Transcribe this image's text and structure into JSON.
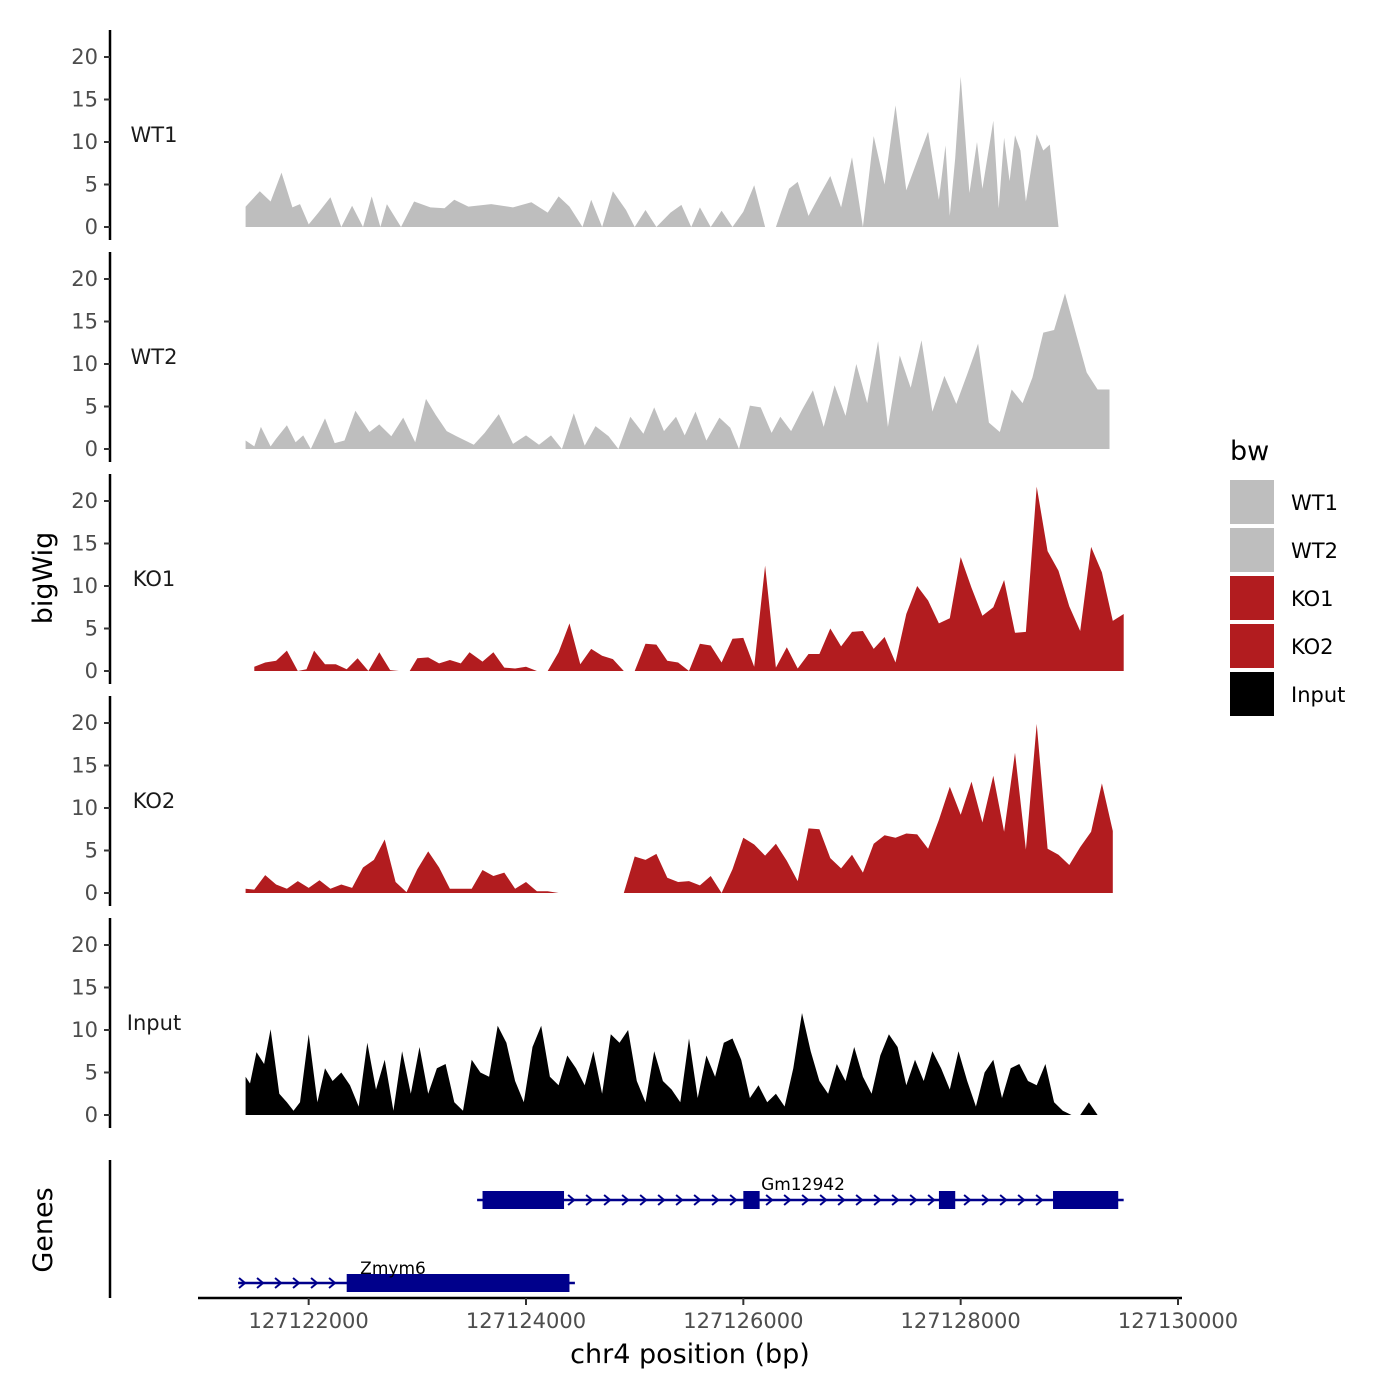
{
  "chart_data": {
    "type": "area",
    "title": "",
    "ylabel": "bigWig",
    "xlabel": "chr4 position (bp)",
    "xlim": [
      127121000,
      127130000
    ],
    "ylim": [
      0,
      22
    ],
    "yticks": [
      0,
      5,
      10,
      15,
      20
    ],
    "xticks": [
      127122000,
      127124000,
      127126000,
      127128000,
      127130000
    ],
    "legend": {
      "title": "bw",
      "position": "right",
      "entries": [
        {
          "name": "WT1",
          "color": "#bebebe"
        },
        {
          "name": "WT2",
          "color": "#bebebe"
        },
        {
          "name": "KO1",
          "color": "#b21c1f"
        },
        {
          "name": "KO2",
          "color": "#b21c1f"
        },
        {
          "name": "Input",
          "color": "#000000"
        }
      ]
    },
    "series": [
      {
        "name": "WT1",
        "color": "#bebebe",
        "x": [
          127121420,
          127121550,
          127121650,
          127121750,
          127121850,
          127121920,
          127122000,
          127122090,
          127122200,
          127122300,
          127122400,
          127122500,
          127122580,
          127122660,
          127122720,
          127122850,
          127122970,
          127123120,
          127123250,
          127123340,
          127123470,
          127123680,
          127123880,
          127124050,
          127124200,
          127124300,
          127124400,
          127124520,
          127124600,
          127124700,
          127124800,
          127124920,
          127125000,
          127125100,
          127125200,
          127125330,
          127125430,
          127125520,
          127125600,
          127125700,
          127125800,
          127125900,
          127126000,
          127126100,
          127126200,
          127126300,
          127126420,
          127126500,
          127126600,
          127126700,
          127126800,
          127126900,
          127127000,
          127127100,
          127127200,
          127127300,
          127127400,
          127127500,
          127127600,
          127127700,
          127127800,
          127127860,
          127127900,
          127127950,
          127128000,
          127128080,
          127128150,
          127128200,
          127128300,
          127128350,
          127128400,
          127128450,
          127128500,
          127128550,
          127128600,
          127128700,
          127128760,
          127128820,
          127128900,
          127128950,
          127129000,
          127129060,
          127129150,
          127129250,
          127129350,
          127129450,
          127129550
        ],
        "values": [
          2.4,
          4.2,
          3.0,
          6.4,
          2.3,
          2.7,
          0.3,
          1.7,
          3.5,
          0.0,
          2.5,
          0.0,
          3.6,
          0.0,
          2.7,
          0.0,
          3.0,
          2.3,
          2.2,
          3.2,
          2.4,
          2.7,
          2.3,
          2.9,
          1.7,
          3.6,
          2.4,
          0.0,
          3.2,
          0.0,
          4.2,
          2.0,
          0.0,
          2.0,
          0.0,
          1.7,
          2.6,
          0.0,
          2.3,
          0.0,
          1.9,
          0.0,
          1.8,
          4.9,
          0.0,
          0.0,
          4.5,
          5.3,
          1.3,
          3.7,
          6.0,
          2.3,
          8.2,
          0.0,
          10.7,
          5.0,
          14.3,
          4.3,
          7.8,
          11.2,
          3.2,
          9.6,
          1.3,
          8.1,
          17.7,
          4.0,
          10.0,
          4.5,
          12.5,
          2.2,
          10.5,
          5.4,
          10.8,
          9.0,
          3.0,
          10.9,
          9.0,
          9.7,
          0.0,
          0.0,
          0.0,
          0.0,
          0.0,
          0.0,
          0.0,
          0.0,
          0.0
        ]
      },
      {
        "name": "WT2",
        "color": "#bebebe",
        "x": [
          127121420,
          127121500,
          127121560,
          127121650,
          127121700,
          127121800,
          127121880,
          127121950,
          127122020,
          127122150,
          127122240,
          127122330,
          127122430,
          127122560,
          127122650,
          127122760,
          127122870,
          127122980,
          127123080,
          127123170,
          127123270,
          127123360,
          127123520,
          127123620,
          127123750,
          127123880,
          127124000,
          127124120,
          127124230,
          127124330,
          127124440,
          127124540,
          127124640,
          127124760,
          127124850,
          127124960,
          127125080,
          127125180,
          127125270,
          127125380,
          127125460,
          127125560,
          127125660,
          127125780,
          127125880,
          127125960,
          127126060,
          127126160,
          127126260,
          127126340,
          127126440,
          127126540,
          127126640,
          127126740,
          127126840,
          127126940,
          127127040,
          127127140,
          127127240,
          127127330,
          127127440,
          127127540,
          127127640,
          127127740,
          127127850,
          127127960,
          127128060,
          127128160,
          127128260,
          127128360,
          127128470,
          127128570,
          127128660,
          127128760,
          127128860,
          127128960,
          127129060,
          127129160,
          127129260,
          127129370
        ],
        "values": [
          1.0,
          0.3,
          2.6,
          0.3,
          1.2,
          2.8,
          0.8,
          1.6,
          0.0,
          3.6,
          0.7,
          1.0,
          4.5,
          2.0,
          2.9,
          1.5,
          3.7,
          0.8,
          5.9,
          4.0,
          2.1,
          1.5,
          0.5,
          1.9,
          4.1,
          0.6,
          1.6,
          0.5,
          1.6,
          0.0,
          4.2,
          0.4,
          2.7,
          1.5,
          0.0,
          3.8,
          1.8,
          4.9,
          2.1,
          3.8,
          1.6,
          4.4,
          1.0,
          3.7,
          2.5,
          0.0,
          5.1,
          4.9,
          1.9,
          3.8,
          2.1,
          4.6,
          6.9,
          2.6,
          7.5,
          3.9,
          10.0,
          5.4,
          12.7,
          2.6,
          11.0,
          7.2,
          12.8,
          4.4,
          8.6,
          5.3,
          8.8,
          12.4,
          3.1,
          2.0,
          7.0,
          5.4,
          8.4,
          13.7,
          14.0,
          18.3,
          13.6,
          9.0,
          7.0,
          7.0
        ]
      },
      {
        "name": "KO1",
        "color": "#b21c1f",
        "x": [
          127121500,
          127121600,
          127121700,
          127121800,
          127121900,
          127121980,
          127122050,
          127122150,
          127122250,
          127122350,
          127122450,
          127122550,
          127122650,
          127122750,
          127122830,
          127122930,
          127123000,
          127123100,
          127123200,
          127123300,
          127123400,
          127123480,
          127123600,
          127123700,
          127123800,
          127123900,
          127124000,
          127124100,
          127124200,
          127124300,
          127124400,
          127124500,
          127124600,
          127124700,
          127124800,
          127124900,
          127125000,
          127125100,
          127125200,
          127125300,
          127125400,
          127125500,
          127125600,
          127125700,
          127125800,
          127125900,
          127126000,
          127126100,
          127126200,
          127126300,
          127126400,
          127126500,
          127126600,
          127126700,
          127126800,
          127126900,
          127127000,
          127127100,
          127127200,
          127127300,
          127127400,
          127127500,
          127127600,
          127127700,
          127127800,
          127127900,
          127128000,
          127128100,
          127128200,
          127128300,
          127128400,
          127128500,
          127128600,
          127128700,
          127128800,
          127128900,
          127129000,
          127129100,
          127129200,
          127129300,
          127129400,
          127129500
        ],
        "values": [
          0.5,
          1.0,
          1.2,
          2.4,
          0.0,
          0.2,
          2.4,
          0.8,
          0.8,
          0.2,
          1.5,
          0.0,
          2.2,
          0.1,
          0.0,
          0.0,
          1.5,
          1.6,
          0.9,
          1.3,
          0.9,
          2.2,
          1.1,
          2.2,
          0.4,
          0.3,
          0.5,
          0.0,
          0.0,
          2.2,
          5.6,
          0.8,
          2.6,
          1.8,
          1.4,
          0.0,
          0.0,
          3.2,
          3.1,
          1.2,
          1.0,
          0.0,
          3.2,
          3.0,
          1.0,
          3.8,
          3.9,
          0.5,
          12.4,
          0.4,
          2.8,
          0.3,
          2.0,
          2.0,
          5.0,
          2.9,
          4.6,
          4.7,
          2.6,
          4.0,
          1.0,
          6.7,
          10.0,
          8.3,
          5.6,
          6.2,
          13.4,
          9.8,
          6.5,
          7.5,
          10.7,
          4.5,
          4.6,
          21.7,
          14.1,
          11.8,
          7.6,
          4.7,
          14.6,
          11.6,
          5.9,
          6.7
        ]
      },
      {
        "name": "KO2",
        "color": "#b21c1f",
        "x": [
          127121420,
          127121500,
          127121600,
          127121700,
          127121800,
          127121900,
          127122000,
          127122100,
          127122200,
          127122300,
          127122400,
          127122500,
          127122600,
          127122700,
          127122800,
          127122900,
          127123000,
          127123100,
          127123200,
          127123300,
          127123400,
          127123500,
          127123600,
          127123700,
          127123800,
          127123900,
          127124000,
          127124100,
          127124200,
          127124300,
          127124400,
          127124500,
          127124600,
          127124700,
          127124800,
          127124900,
          127125000,
          127125100,
          127125200,
          127125300,
          127125400,
          127125500,
          127125600,
          127125700,
          127125800,
          127125900,
          127126000,
          127126100,
          127126200,
          127126300,
          127126400,
          127126500,
          127126600,
          127126700,
          127126800,
          127126900,
          127127000,
          127127100,
          127127200,
          127127300,
          127127400,
          127127500,
          127127600,
          127127700,
          127127800,
          127127900,
          127128000,
          127128100,
          127128200,
          127128300,
          127128400,
          127128500,
          127128600,
          127128700,
          127128800,
          127128900,
          127129000,
          127129100,
          127129200,
          127129300,
          127129400
        ],
        "values": [
          0.5,
          0.4,
          2.1,
          1.0,
          0.5,
          1.4,
          0.6,
          1.5,
          0.5,
          1.0,
          0.6,
          3.0,
          3.9,
          6.3,
          1.3,
          0.1,
          2.8,
          4.9,
          3.0,
          0.5,
          0.5,
          0.5,
          2.7,
          2.0,
          2.4,
          0.5,
          1.3,
          0.2,
          0.2,
          0.0,
          0.0,
          0.0,
          0.0,
          0.0,
          0.0,
          0.0,
          4.3,
          3.9,
          4.6,
          1.8,
          1.3,
          1.4,
          0.9,
          2.0,
          0.0,
          2.8,
          6.5,
          5.7,
          4.4,
          5.8,
          3.8,
          1.4,
          7.6,
          7.5,
          4.1,
          2.9,
          4.5,
          2.4,
          5.8,
          6.8,
          6.5,
          7.0,
          6.9,
          5.2,
          8.6,
          12.5,
          9.2,
          13.1,
          8.3,
          13.8,
          7.2,
          16.5,
          5.1,
          19.9,
          5.2,
          4.5,
          3.3,
          5.4,
          7.2,
          12.9,
          7.3
        ]
      },
      {
        "name": "Input",
        "color": "#000000",
        "x": [
          127121420,
          127121460,
          127121520,
          127121590,
          127121650,
          127121730,
          127121800,
          127121860,
          127121920,
          127122000,
          127122080,
          127122150,
          127122220,
          127122300,
          127122380,
          127122460,
          127122540,
          127122620,
          127122700,
          127122780,
          127122860,
          127122940,
          127123020,
          127123100,
          127123180,
          127123260,
          127123340,
          127123420,
          127123500,
          127123580,
          127123660,
          127123740,
          127123820,
          127123900,
          127123980,
          127124060,
          127124140,
          127124220,
          127124300,
          127124380,
          127124460,
          127124540,
          127124620,
          127124700,
          127124780,
          127124860,
          127124940,
          127125020,
          127125100,
          127125180,
          127125260,
          127125340,
          127125420,
          127125500,
          127125580,
          127125660,
          127125740,
          127125820,
          127125900,
          127125980,
          127126060,
          127126140,
          127126220,
          127126300,
          127126380,
          127126460,
          127126540,
          127126620,
          127126700,
          127126780,
          127126860,
          127126940,
          127127020,
          127127100,
          127127180,
          127127260,
          127127340,
          127127420,
          127127500,
          127127580,
          127127660,
          127127740,
          127127820,
          127127900,
          127127980,
          127128060,
          127128140,
          127128220,
          127128300,
          127128380,
          127128460,
          127128540,
          127128620,
          127128700,
          127128780,
          127128860,
          127128940,
          127129020,
          127129100,
          127129180,
          127129260,
          127129340,
          127129420
        ],
        "values": [
          4.5,
          3.7,
          7.4,
          6.0,
          10.1,
          2.5,
          1.5,
          0.5,
          1.5,
          9.5,
          1.5,
          5.5,
          4.0,
          5.0,
          3.5,
          1.0,
          8.5,
          3.0,
          6.5,
          0.5,
          7.5,
          2.5,
          8.0,
          2.5,
          5.5,
          6.0,
          1.5,
          0.5,
          6.5,
          5.0,
          4.5,
          10.5,
          8.5,
          4.0,
          1.5,
          8.0,
          10.5,
          4.5,
          3.5,
          7.0,
          5.5,
          3.5,
          7.5,
          2.5,
          9.5,
          8.5,
          10.0,
          4.0,
          1.5,
          7.5,
          4.0,
          3.0,
          1.5,
          9.0,
          2.0,
          7.0,
          4.5,
          8.5,
          9.0,
          6.5,
          2.0,
          3.5,
          1.5,
          2.5,
          1.0,
          5.5,
          12.0,
          7.5,
          4.0,
          2.5,
          6.0,
          4.0,
          8.0,
          4.5,
          2.5,
          7.0,
          9.5,
          8.0,
          3.5,
          6.5,
          4.0,
          7.5,
          5.5,
          3.0,
          7.5,
          4.0,
          1.0,
          5.0,
          6.5,
          2.0,
          5.5,
          6.0,
          4.0,
          3.5,
          6.0,
          1.5,
          0.5,
          0.0,
          0.0,
          1.5,
          0.0,
          0.0,
          0.0
        ]
      }
    ],
    "genes": [
      {
        "name": "Zmym6",
        "start": 127121350,
        "end": 127124450,
        "strand": "+",
        "exons": [
          [
            127122350,
            127124400
          ]
        ]
      },
      {
        "name": "Gm12942",
        "start": 127123550,
        "end": 127129500,
        "strand": "+",
        "exons": [
          [
            127123600,
            127124350
          ],
          [
            127126000,
            127126150
          ],
          [
            127127800,
            127127950
          ],
          [
            127128850,
            127129450
          ]
        ]
      }
    ],
    "genes_label": "Genes"
  }
}
